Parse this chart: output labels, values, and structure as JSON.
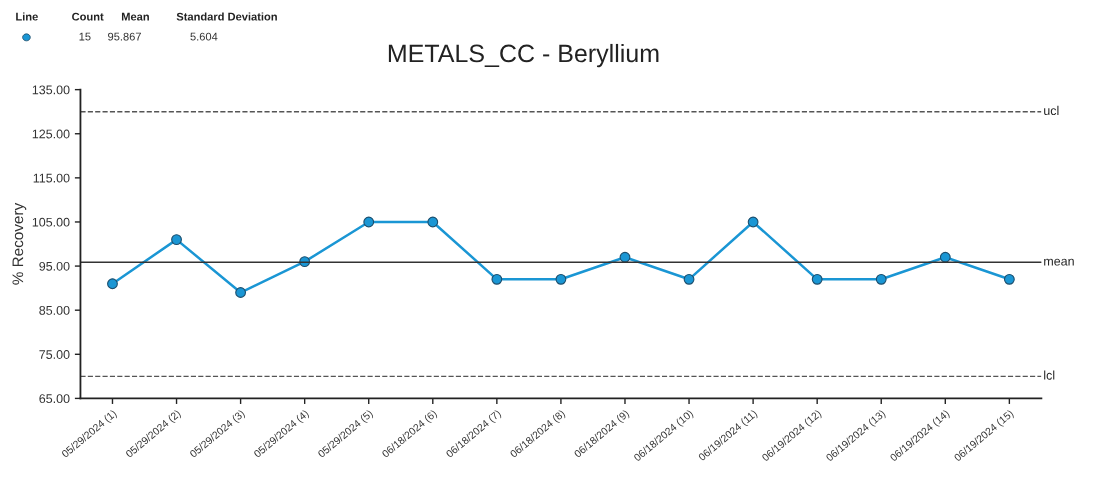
{
  "chart_data": {
    "type": "line",
    "title": "METALS_CC - Beryllium",
    "ylabel": "% Recovery",
    "categories": [
      "05/29/2024 (1)",
      "05/29/2024 (2)",
      "05/29/2024 (3)",
      "05/29/2024 (4)",
      "05/29/2024 (5)",
      "06/18/2024 (6)",
      "06/18/2024 (7)",
      "06/18/2024 (8)",
      "06/18/2024 (9)",
      "06/18/2024 (10)",
      "06/19/2024 (11)",
      "06/19/2024 (12)",
      "06/19/2024 (13)",
      "06/19/2024 (14)",
      "06/19/2024 (15)"
    ],
    "series": [
      {
        "color": "#1a96d4",
        "values": [
          91,
          101,
          89,
          96,
          105,
          105,
          92,
          92,
          97,
          92,
          105,
          92,
          92,
          97,
          92
        ]
      }
    ],
    "ylim": [
      65,
      135
    ],
    "yticks": [
      {
        "value": 65,
        "label": "65.00"
      },
      {
        "value": 75,
        "label": "75.00"
      },
      {
        "value": 85,
        "label": "85.00"
      },
      {
        "value": 95,
        "label": "95.00"
      },
      {
        "value": 105,
        "label": "105.00"
      },
      {
        "value": 115,
        "label": "115.00"
      },
      {
        "value": 125,
        "label": "125.00"
      },
      {
        "value": 135,
        "label": "135.00"
      }
    ],
    "ref_lines": [
      {
        "axis": "y",
        "value": 130,
        "label": "ucl",
        "color": "#555555",
        "line_style": "dashed"
      },
      {
        "axis": "y",
        "value": 95.867,
        "label": "mean",
        "color": "#333333",
        "line_style": "solid"
      },
      {
        "axis": "y",
        "value": 70,
        "label": "lcl",
        "color": "#555555",
        "line_style": "dashed"
      }
    ],
    "annotations": [
      "Line",
      "Count",
      "Mean",
      "Standard Deviation",
      "15",
      "95.867",
      "5.604"
    ],
    "marker": "circle",
    "line_style": "solid",
    "grid": false,
    "legend": false
  }
}
